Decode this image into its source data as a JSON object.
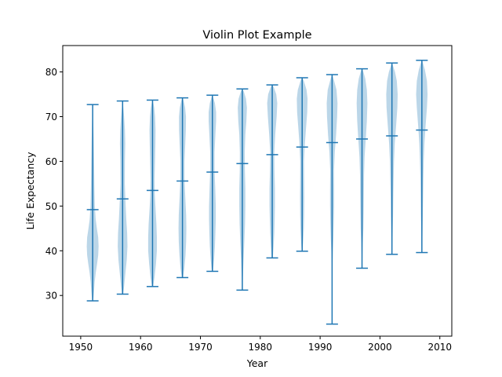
{
  "chart_data": {
    "type": "violin",
    "title": "Violin Plot Example",
    "xlabel": "Year",
    "ylabel": "Life Expectancy",
    "xlim": [
      1947,
      2012
    ],
    "ylim": [
      20.9,
      85.9
    ],
    "xticks": [
      1950,
      1960,
      1970,
      1980,
      1990,
      2000,
      2010
    ],
    "yticks": [
      30,
      40,
      50,
      60,
      70,
      80
    ],
    "grid": false,
    "colors": {
      "body": "#1f77b4",
      "line": "#1f77b4",
      "body_alpha": 0.3
    },
    "violins": [
      {
        "x": 1952,
        "min": 28.8,
        "max": 72.7,
        "median": 49.2,
        "profile": [
          [
            28.8,
            0.08
          ],
          [
            31,
            0.2
          ],
          [
            33,
            0.3
          ],
          [
            35,
            0.45
          ],
          [
            37,
            0.65
          ],
          [
            39,
            0.82
          ],
          [
            41,
            0.88
          ],
          [
            43,
            0.82
          ],
          [
            45,
            0.62
          ],
          [
            47,
            0.45
          ],
          [
            50,
            0.32
          ],
          [
            55,
            0.25
          ],
          [
            60,
            0.2
          ],
          [
            65,
            0.15
          ],
          [
            68,
            0.1
          ],
          [
            70,
            0.06
          ],
          [
            72.7,
            0.02
          ]
        ]
      },
      {
        "x": 1957,
        "min": 30.3,
        "max": 73.5,
        "median": 51.6,
        "profile": [
          [
            30.3,
            0.08
          ],
          [
            32,
            0.22
          ],
          [
            35,
            0.42
          ],
          [
            38,
            0.62
          ],
          [
            41,
            0.72
          ],
          [
            44,
            0.68
          ],
          [
            47,
            0.55
          ],
          [
            50,
            0.45
          ],
          [
            55,
            0.32
          ],
          [
            60,
            0.34
          ],
          [
            64,
            0.4
          ],
          [
            67,
            0.35
          ],
          [
            70,
            0.22
          ],
          [
            72,
            0.1
          ],
          [
            73.5,
            0.02
          ]
        ]
      },
      {
        "x": 1962,
        "min": 32.0,
        "max": 73.7,
        "median": 53.5,
        "profile": [
          [
            32,
            0.08
          ],
          [
            34,
            0.3
          ],
          [
            37,
            0.5
          ],
          [
            40,
            0.65
          ],
          [
            43,
            0.65
          ],
          [
            46,
            0.58
          ],
          [
            50,
            0.42
          ],
          [
            53,
            0.32
          ],
          [
            56,
            0.3
          ],
          [
            60,
            0.36
          ],
          [
            64,
            0.42
          ],
          [
            67,
            0.45
          ],
          [
            70,
            0.38
          ],
          [
            72,
            0.25
          ],
          [
            73.7,
            0.03
          ]
        ]
      },
      {
        "x": 1967,
        "min": 34.0,
        "max": 74.2,
        "median": 55.6,
        "profile": [
          [
            34,
            0.08
          ],
          [
            36,
            0.28
          ],
          [
            39,
            0.45
          ],
          [
            42,
            0.55
          ],
          [
            45,
            0.58
          ],
          [
            48,
            0.55
          ],
          [
            52,
            0.42
          ],
          [
            56,
            0.3
          ],
          [
            60,
            0.3
          ],
          [
            64,
            0.42
          ],
          [
            67,
            0.5
          ],
          [
            70,
            0.52
          ],
          [
            72,
            0.4
          ],
          [
            73.5,
            0.18
          ],
          [
            74.2,
            0.03
          ]
        ]
      },
      {
        "x": 1972,
        "min": 35.4,
        "max": 74.8,
        "median": 57.6,
        "profile": [
          [
            35.4,
            0.08
          ],
          [
            38,
            0.25
          ],
          [
            41,
            0.38
          ],
          [
            44,
            0.45
          ],
          [
            47,
            0.5
          ],
          [
            50,
            0.5
          ],
          [
            54,
            0.42
          ],
          [
            58,
            0.32
          ],
          [
            62,
            0.32
          ],
          [
            66,
            0.45
          ],
          [
            69,
            0.55
          ],
          [
            71,
            0.55
          ],
          [
            73,
            0.38
          ],
          [
            74.8,
            0.03
          ]
        ]
      },
      {
        "x": 1977,
        "min": 31.2,
        "max": 76.2,
        "median": 59.5,
        "profile": [
          [
            31.2,
            0.03
          ],
          [
            34,
            0.08
          ],
          [
            38,
            0.18
          ],
          [
            42,
            0.3
          ],
          [
            46,
            0.4
          ],
          [
            50,
            0.45
          ],
          [
            54,
            0.45
          ],
          [
            58,
            0.38
          ],
          [
            62,
            0.36
          ],
          [
            66,
            0.45
          ],
          [
            69,
            0.6
          ],
          [
            72,
            0.68
          ],
          [
            74,
            0.55
          ],
          [
            75.5,
            0.25
          ],
          [
            76.2,
            0.03
          ]
        ]
      },
      {
        "x": 1982,
        "min": 38.4,
        "max": 77.1,
        "median": 61.5,
        "profile": [
          [
            38.4,
            0.08
          ],
          [
            41,
            0.2
          ],
          [
            44,
            0.3
          ],
          [
            47,
            0.36
          ],
          [
            50,
            0.4
          ],
          [
            54,
            0.4
          ],
          [
            58,
            0.33
          ],
          [
            62,
            0.3
          ],
          [
            66,
            0.45
          ],
          [
            70,
            0.65
          ],
          [
            73,
            0.75
          ],
          [
            75,
            0.6
          ],
          [
            76.5,
            0.25
          ],
          [
            77.1,
            0.03
          ]
        ]
      },
      {
        "x": 1987,
        "min": 39.9,
        "max": 78.7,
        "median": 63.2,
        "profile": [
          [
            39.9,
            0.06
          ],
          [
            42,
            0.15
          ],
          [
            45,
            0.25
          ],
          [
            48,
            0.3
          ],
          [
            52,
            0.32
          ],
          [
            56,
            0.3
          ],
          [
            60,
            0.28
          ],
          [
            64,
            0.4
          ],
          [
            68,
            0.6
          ],
          [
            71,
            0.75
          ],
          [
            74,
            0.8
          ],
          [
            76,
            0.65
          ],
          [
            78,
            0.25
          ],
          [
            78.7,
            0.03
          ]
        ]
      },
      {
        "x": 1992,
        "min": 23.6,
        "max": 79.4,
        "median": 64.2,
        "profile": [
          [
            23.6,
            0.01
          ],
          [
            30,
            0.02
          ],
          [
            34,
            0.04
          ],
          [
            37,
            0.06
          ],
          [
            40,
            0.12
          ],
          [
            43,
            0.2
          ],
          [
            46,
            0.25
          ],
          [
            50,
            0.3
          ],
          [
            54,
            0.3
          ],
          [
            58,
            0.28
          ],
          [
            62,
            0.4
          ],
          [
            66,
            0.6
          ],
          [
            70,
            0.75
          ],
          [
            73,
            0.8
          ],
          [
            76,
            0.65
          ],
          [
            78,
            0.3
          ],
          [
            79.4,
            0.03
          ]
        ]
      },
      {
        "x": 1997,
        "min": 36.1,
        "max": 80.7,
        "median": 65.0,
        "profile": [
          [
            36.1,
            0.03
          ],
          [
            39,
            0.06
          ],
          [
            42,
            0.12
          ],
          [
            45,
            0.2
          ],
          [
            49,
            0.25
          ],
          [
            53,
            0.28
          ],
          [
            57,
            0.3
          ],
          [
            61,
            0.38
          ],
          [
            65,
            0.55
          ],
          [
            69,
            0.72
          ],
          [
            73,
            0.8
          ],
          [
            76,
            0.72
          ],
          [
            78.5,
            0.48
          ],
          [
            80,
            0.2
          ],
          [
            80.7,
            0.03
          ]
        ]
      },
      {
        "x": 2002,
        "min": 39.2,
        "max": 82.0,
        "median": 65.7,
        "profile": [
          [
            39.2,
            0.03
          ],
          [
            42,
            0.08
          ],
          [
            45,
            0.12
          ],
          [
            48,
            0.16
          ],
          [
            52,
            0.2
          ],
          [
            56,
            0.25
          ],
          [
            60,
            0.3
          ],
          [
            64,
            0.42
          ],
          [
            68,
            0.62
          ],
          [
            72,
            0.8
          ],
          [
            75,
            0.85
          ],
          [
            78,
            0.72
          ],
          [
            80,
            0.45
          ],
          [
            82,
            0.03
          ]
        ]
      },
      {
        "x": 2007,
        "min": 39.6,
        "max": 82.6,
        "median": 67.0,
        "profile": [
          [
            39.6,
            0.03
          ],
          [
            42,
            0.06
          ],
          [
            45,
            0.1
          ],
          [
            48,
            0.14
          ],
          [
            52,
            0.18
          ],
          [
            56,
            0.22
          ],
          [
            60,
            0.28
          ],
          [
            64,
            0.38
          ],
          [
            68,
            0.55
          ],
          [
            72,
            0.75
          ],
          [
            75,
            0.85
          ],
          [
            78,
            0.75
          ],
          [
            80.5,
            0.45
          ],
          [
            82.6,
            0.03
          ]
        ]
      }
    ]
  }
}
